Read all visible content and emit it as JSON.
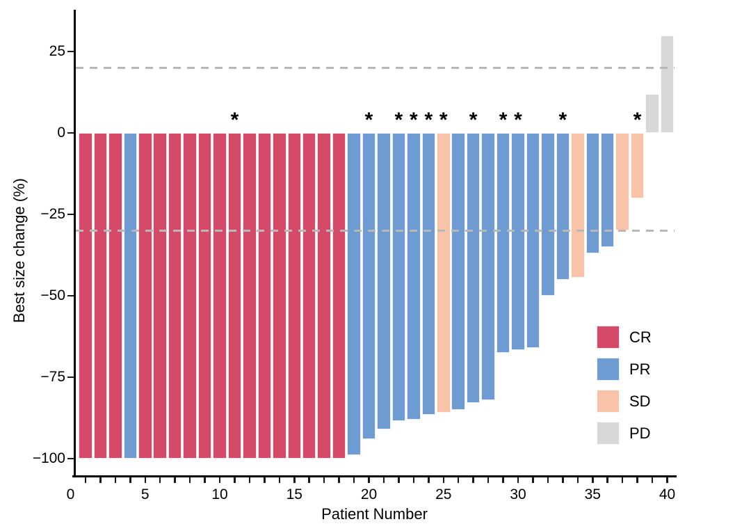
{
  "figure": {
    "xlabel": "Patient Number",
    "ylabel": "Best size change (%)"
  },
  "chart_data": {
    "type": "bar",
    "subtype": "waterfall",
    "title": "",
    "xlabel": "Patient Number",
    "ylabel": "Best size change (%)",
    "x_axis": {
      "min": 0,
      "max": 40,
      "labeled_ticks": [
        0,
        5,
        10,
        15,
        20,
        25,
        30,
        35,
        40
      ],
      "minor_tick_every": 1
    },
    "y_axis": {
      "ticks": [
        25,
        0,
        -25,
        -50,
        -75,
        -100
      ],
      "min": -100,
      "max": 30,
      "unit": "%"
    },
    "reference_lines": [
      {
        "y": 20,
        "style": "dashed"
      },
      {
        "y": -30,
        "style": "dashed"
      }
    ],
    "annotation_glyph": "*",
    "annotated_patients": [
      11,
      20,
      22,
      23,
      24,
      25,
      27,
      29,
      30,
      33,
      38
    ],
    "legend": {
      "position": "right-middle",
      "entries": [
        {
          "label": "CR",
          "color": "#d54a68"
        },
        {
          "label": "PR",
          "color": "#6d9bd2"
        },
        {
          "label": "SD",
          "color": "#f8c3a8"
        },
        {
          "label": "PD",
          "color": "#d8d8d8"
        }
      ]
    },
    "series": [
      {
        "patient": 1,
        "response": "CR",
        "best_size_change_pct": -100,
        "asterisk": false
      },
      {
        "patient": 2,
        "response": "CR",
        "best_size_change_pct": -100,
        "asterisk": false
      },
      {
        "patient": 3,
        "response": "CR",
        "best_size_change_pct": -100,
        "asterisk": false
      },
      {
        "patient": 4,
        "response": "PR",
        "best_size_change_pct": -100,
        "asterisk": false
      },
      {
        "patient": 5,
        "response": "CR",
        "best_size_change_pct": -100,
        "asterisk": false
      },
      {
        "patient": 6,
        "response": "CR",
        "best_size_change_pct": -100,
        "asterisk": false
      },
      {
        "patient": 7,
        "response": "CR",
        "best_size_change_pct": -100,
        "asterisk": false
      },
      {
        "patient": 8,
        "response": "CR",
        "best_size_change_pct": -100,
        "asterisk": false
      },
      {
        "patient": 9,
        "response": "CR",
        "best_size_change_pct": -100,
        "asterisk": false
      },
      {
        "patient": 10,
        "response": "CR",
        "best_size_change_pct": -100,
        "asterisk": false
      },
      {
        "patient": 11,
        "response": "CR",
        "best_size_change_pct": -100,
        "asterisk": true
      },
      {
        "patient": 12,
        "response": "CR",
        "best_size_change_pct": -100,
        "asterisk": false
      },
      {
        "patient": 13,
        "response": "CR",
        "best_size_change_pct": -100,
        "asterisk": false
      },
      {
        "patient": 14,
        "response": "CR",
        "best_size_change_pct": -100,
        "asterisk": false
      },
      {
        "patient": 15,
        "response": "CR",
        "best_size_change_pct": -100,
        "asterisk": false
      },
      {
        "patient": 16,
        "response": "CR",
        "best_size_change_pct": -100,
        "asterisk": false
      },
      {
        "patient": 17,
        "response": "CR",
        "best_size_change_pct": -100,
        "asterisk": false
      },
      {
        "patient": 18,
        "response": "CR",
        "best_size_change_pct": -100,
        "asterisk": false
      },
      {
        "patient": 19,
        "response": "PR",
        "best_size_change_pct": -99,
        "asterisk": false
      },
      {
        "patient": 20,
        "response": "PR",
        "best_size_change_pct": -94,
        "asterisk": true
      },
      {
        "patient": 21,
        "response": "PR",
        "best_size_change_pct": -91,
        "asterisk": false
      },
      {
        "patient": 22,
        "response": "PR",
        "best_size_change_pct": -88.5,
        "asterisk": true
      },
      {
        "patient": 23,
        "response": "PR",
        "best_size_change_pct": -88,
        "asterisk": true
      },
      {
        "patient": 24,
        "response": "PR",
        "best_size_change_pct": -86.5,
        "asterisk": true
      },
      {
        "patient": 25,
        "response": "SD",
        "best_size_change_pct": -86,
        "asterisk": true
      },
      {
        "patient": 26,
        "response": "PR",
        "best_size_change_pct": -85,
        "asterisk": false
      },
      {
        "patient": 27,
        "response": "PR",
        "best_size_change_pct": -83,
        "asterisk": true
      },
      {
        "patient": 28,
        "response": "PR",
        "best_size_change_pct": -82,
        "asterisk": false
      },
      {
        "patient": 29,
        "response": "PR",
        "best_size_change_pct": -67.5,
        "asterisk": true
      },
      {
        "patient": 30,
        "response": "PR",
        "best_size_change_pct": -66.7,
        "asterisk": true
      },
      {
        "patient": 31,
        "response": "PR",
        "best_size_change_pct": -66,
        "asterisk": false
      },
      {
        "patient": 32,
        "response": "PR",
        "best_size_change_pct": -50,
        "asterisk": false
      },
      {
        "patient": 33,
        "response": "PR",
        "best_size_change_pct": -45,
        "asterisk": true
      },
      {
        "patient": 34,
        "response": "SD",
        "best_size_change_pct": -44.5,
        "asterisk": false
      },
      {
        "patient": 35,
        "response": "PR",
        "best_size_change_pct": -37,
        "asterisk": false
      },
      {
        "patient": 36,
        "response": "PR",
        "best_size_change_pct": -35,
        "asterisk": false
      },
      {
        "patient": 37,
        "response": "SD",
        "best_size_change_pct": -30,
        "asterisk": false
      },
      {
        "patient": 38,
        "response": "SD",
        "best_size_change_pct": -20,
        "asterisk": true
      },
      {
        "patient": 39,
        "response": "PD",
        "best_size_change_pct": 12,
        "asterisk": false
      },
      {
        "patient": 40,
        "response": "PD",
        "best_size_change_pct": 30,
        "asterisk": false
      }
    ]
  },
  "colors": {
    "CR": "#d54a68",
    "PR": "#6d9bd2",
    "SD": "#f8c3a8",
    "PD": "#d8d8d8",
    "dashed_line": "#b8b8b8",
    "axis": "#000000"
  }
}
